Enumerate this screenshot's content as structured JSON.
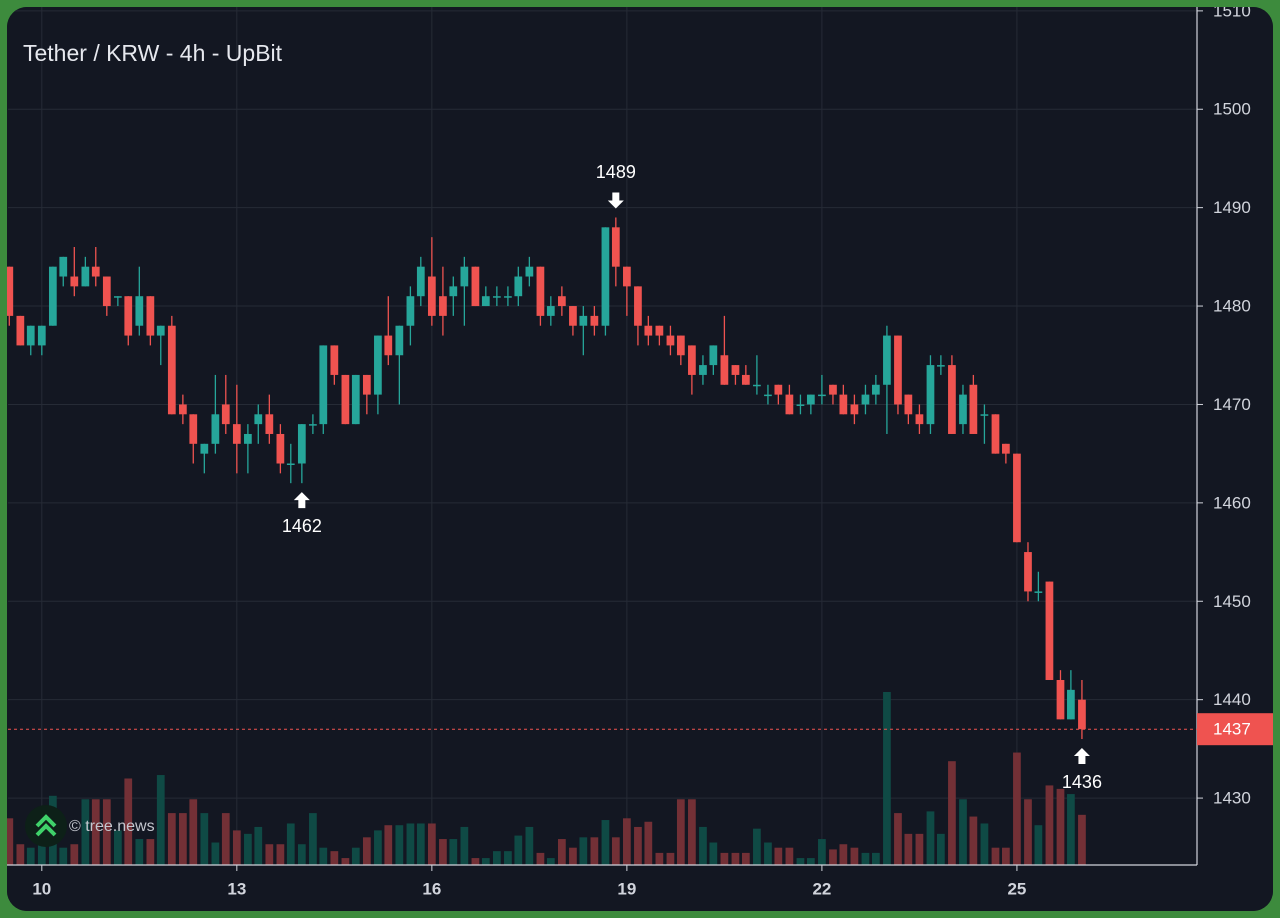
{
  "chart_data": {
    "type": "candlestick",
    "title": "Tether / KRW - 4h - UpBit",
    "watermark": "© tree.news",
    "x": [
      9.5,
      9.67,
      9.83,
      10,
      10.17,
      10.33,
      10.5,
      10.67,
      10.83,
      11,
      11.17,
      11.33,
      11.5,
      11.67,
      11.83,
      12,
      12.17,
      12.33,
      12.5,
      12.67,
      12.83,
      13,
      13.17,
      13.33,
      13.5,
      13.67,
      13.83,
      14,
      14.17,
      14.33,
      14.5,
      14.67,
      14.83,
      15,
      15.17,
      15.33,
      15.5,
      15.67,
      15.83,
      16,
      16.17,
      16.33,
      16.5,
      16.67,
      16.83,
      17,
      17.17,
      17.33,
      17.5,
      17.67,
      17.83,
      18,
      18.17,
      18.33,
      18.5,
      18.67,
      18.83,
      19,
      19.17,
      19.33,
      19.5,
      19.67,
      19.83,
      20,
      20.17,
      20.33,
      20.5,
      20.67,
      20.83,
      21,
      21.17,
      21.33,
      21.5,
      21.67,
      21.83,
      22,
      22.17,
      22.33,
      22.5,
      22.67,
      22.83,
      23,
      23.17,
      23.33,
      23.5,
      23.67,
      23.83,
      24,
      24.17,
      24.33,
      24.5,
      24.67,
      24.83,
      25,
      25.17,
      25.33,
      25.5,
      25.67,
      25.83,
      26
    ],
    "open": [
      1484,
      1479,
      1476,
      1476,
      1478,
      1483,
      1483,
      1482,
      1484,
      1483,
      1481,
      1481,
      1478,
      1481,
      1477,
      1478,
      1470,
      1469,
      1465,
      1466,
      1470,
      1468,
      1466,
      1468,
      1469,
      1467,
      1464,
      1464,
      1468,
      1468,
      1476,
      1473,
      1468,
      1473,
      1471,
      1477,
      1475,
      1478,
      1481,
      1483,
      1481,
      1481,
      1482,
      1484,
      1480,
      1481,
      1481,
      1481,
      1483,
      1484,
      1479,
      1481,
      1480,
      1478,
      1479,
      1478,
      1488,
      1484,
      1482,
      1478,
      1478,
      1477,
      1477,
      1476,
      1473,
      1474,
      1475,
      1474,
      1473,
      1472,
      1471,
      1472,
      1471,
      1470,
      1470,
      1471,
      1472,
      1471,
      1470,
      1470,
      1471,
      1472,
      1477,
      1471,
      1469,
      1468,
      1474,
      1474,
      1468,
      1472,
      1469,
      1469,
      1466,
      1465,
      1455,
      1451,
      1452,
      1442,
      1438,
      1440
    ],
    "high": [
      1484,
      1479,
      1478,
      1478,
      1484,
      1485,
      1486,
      1485,
      1486,
      1483,
      1481,
      1481,
      1484,
      1481,
      1478,
      1479,
      1471,
      1469,
      1466,
      1473,
      1473,
      1472,
      1468,
      1470,
      1471,
      1468,
      1466,
      1468,
      1469,
      1476,
      1476,
      1473,
      1473,
      1473,
      1477,
      1481,
      1478,
      1482,
      1485,
      1487,
      1484,
      1483,
      1485,
      1484,
      1482,
      1482,
      1482,
      1484,
      1485,
      1484,
      1481,
      1482,
      1480,
      1480,
      1480,
      1488,
      1489,
      1484,
      1482,
      1479,
      1478,
      1478,
      1477,
      1476,
      1475,
      1476,
      1479,
      1474,
      1474,
      1475,
      1472,
      1472,
      1472,
      1471,
      1471,
      1473,
      1472,
      1472,
      1471,
      1472,
      1473,
      1478,
      1477,
      1471,
      1470,
      1475,
      1475,
      1475,
      1472,
      1473,
      1470,
      1469,
      1466,
      1465,
      1456,
      1453,
      1452,
      1443,
      1443,
      1442
    ],
    "low": [
      1478,
      1476,
      1475,
      1475,
      1478,
      1482,
      1481,
      1482,
      1482,
      1479,
      1480,
      1476,
      1477,
      1476,
      1474,
      1469,
      1468,
      1464,
      1463,
      1465,
      1467,
      1463,
      1463,
      1466,
      1466,
      1463,
      1462,
      1462,
      1467,
      1467,
      1472,
      1468,
      1468,
      1469,
      1469,
      1474,
      1470,
      1476,
      1480,
      1478,
      1477,
      1479,
      1478,
      1480,
      1480,
      1480,
      1480,
      1480,
      1482,
      1478,
      1478,
      1479,
      1477,
      1475,
      1477,
      1477,
      1482,
      1479,
      1476,
      1476,
      1476,
      1475,
      1474,
      1471,
      1472,
      1473,
      1472,
      1472,
      1472,
      1471,
      1470,
      1470,
      1469,
      1469,
      1469,
      1470,
      1470,
      1469,
      1468,
      1469,
      1470,
      1467,
      1469,
      1468,
      1467,
      1467,
      1473,
      1467,
      1467,
      1467,
      1466,
      1465,
      1464,
      1456,
      1450,
      1450,
      1442,
      1438,
      1438,
      1436
    ],
    "close": [
      1479,
      1476,
      1478,
      1478,
      1484,
      1485,
      1482,
      1484,
      1483,
      1480,
      1481,
      1477,
      1481,
      1477,
      1478,
      1469,
      1469,
      1466,
      1466,
      1469,
      1468,
      1466,
      1467,
      1469,
      1467,
      1464,
      1464,
      1468,
      1468,
      1476,
      1473,
      1468,
      1473,
      1471,
      1477,
      1475,
      1478,
      1481,
      1484,
      1479,
      1479,
      1482,
      1484,
      1480,
      1481,
      1481,
      1481,
      1483,
      1484,
      1479,
      1480,
      1480,
      1478,
      1479,
      1478,
      1488,
      1484,
      1482,
      1478,
      1477,
      1477,
      1476,
      1475,
      1473,
      1474,
      1476,
      1472,
      1473,
      1472,
      1472,
      1471,
      1471,
      1469,
      1470,
      1471,
      1471,
      1471,
      1469,
      1469,
      1471,
      1472,
      1477,
      1470,
      1469,
      1468,
      1474,
      1474,
      1467,
      1471,
      1467,
      1469,
      1465,
      1465,
      1456,
      1451,
      1451,
      1442,
      1438,
      1441,
      1437
    ],
    "volume": [
      27,
      12,
      10,
      18,
      40,
      10,
      12,
      38,
      38,
      38,
      20,
      50,
      15,
      15,
      52,
      30,
      30,
      38,
      30,
      13,
      30,
      20,
      18,
      22,
      12,
      12,
      24,
      12,
      30,
      10,
      8,
      4,
      10,
      16,
      20,
      23,
      23,
      24,
      24,
      24,
      15,
      15,
      22,
      4,
      4,
      8,
      8,
      17,
      22,
      7,
      4,
      15,
      10,
      16,
      16,
      26,
      16,
      27,
      22,
      25,
      7,
      7,
      38,
      38,
      22,
      13,
      7,
      7,
      7,
      21,
      13,
      10,
      10,
      4,
      4,
      15,
      9,
      12,
      10,
      7,
      7,
      100,
      30,
      18,
      18,
      31,
      18,
      60,
      38,
      28,
      24,
      10,
      10,
      65,
      38,
      23,
      46,
      44,
      41,
      29
    ],
    "up_color": "#26a69a",
    "down_color": "#ef5350",
    "up_volume_color": "#0f4a45",
    "down_volume_color": "#733036",
    "xlim": [
      9.48,
      27.77
    ],
    "xticks": [
      10,
      13,
      16,
      19,
      22,
      25
    ],
    "ylim": [
      1423.2,
      1511.1
    ],
    "yticks": [
      1430,
      1440,
      1450,
      1460,
      1470,
      1480,
      1490,
      1500,
      1510
    ],
    "grid": true,
    "last_price": 1437,
    "annotations": [
      {
        "x": 18.83,
        "value": 1489,
        "position": "above"
      },
      {
        "x": 14,
        "value": 1462,
        "position": "below"
      },
      {
        "x": 26,
        "value": 1436,
        "position": "below"
      }
    ]
  }
}
